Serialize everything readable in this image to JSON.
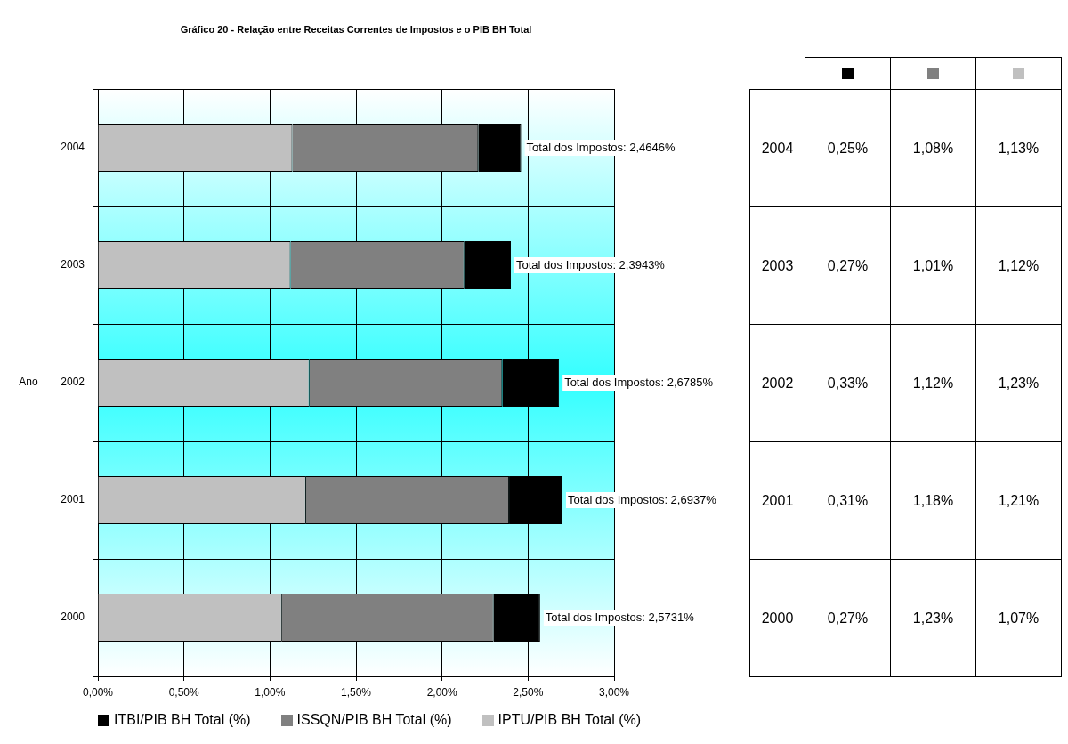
{
  "chart_data": {
    "type": "bar",
    "orientation": "horizontal",
    "stacked": true,
    "title": "Gráfico 20 - Relação entre Receitas Correntes de Impostos e o PIB BH Total",
    "ylabel": "Ano",
    "categories": [
      "2004",
      "2003",
      "2002",
      "2001",
      "2000"
    ],
    "series": [
      {
        "name": "IPTU/PIB BH Total (%)",
        "color": "#c0c0c0",
        "values": [
          1.13,
          1.12,
          1.23,
          1.21,
          1.07
        ],
        "value_labels": [
          "1,13%",
          "1,12%",
          "1,23%",
          "1,21%",
          "1,07%"
        ]
      },
      {
        "name": "ISSQN/PIB BH Total (%)",
        "color": "#808080",
        "values": [
          1.08,
          1.01,
          1.12,
          1.18,
          1.23
        ],
        "value_labels": [
          "1,08%",
          "1,01%",
          "1,12%",
          "1,18%",
          "1,23%"
        ]
      },
      {
        "name": "ITBI/PIB BH Total (%)",
        "color": "#000000",
        "values": [
          0.25,
          0.27,
          0.33,
          0.31,
          0.27
        ],
        "value_labels": [
          "0,25%",
          "0,27%",
          "0,33%",
          "0,31%",
          "0,27%"
        ]
      }
    ],
    "totals": [
      "Total dos Impostos: 2,4646%",
      "Total dos Impostos: 2,3943%",
      "Total dos Impostos: 2,6785%",
      "Total dos Impostos: 2,6937%",
      "Total dos Impostos: 2,5731%"
    ],
    "xlim": [
      0,
      3
    ],
    "xticks": [
      {
        "value": 0,
        "label": "0,00%"
      },
      {
        "value": 0.5,
        "label": "0,50%"
      },
      {
        "value": 1,
        "label": "1,00%"
      },
      {
        "value": 1.5,
        "label": "1,50%"
      },
      {
        "value": 2,
        "label": "2,00%"
      },
      {
        "value": 2.5,
        "label": "2,50%"
      },
      {
        "value": 3,
        "label": "3,00%"
      }
    ],
    "grid": true,
    "legend": "bottom"
  }
}
